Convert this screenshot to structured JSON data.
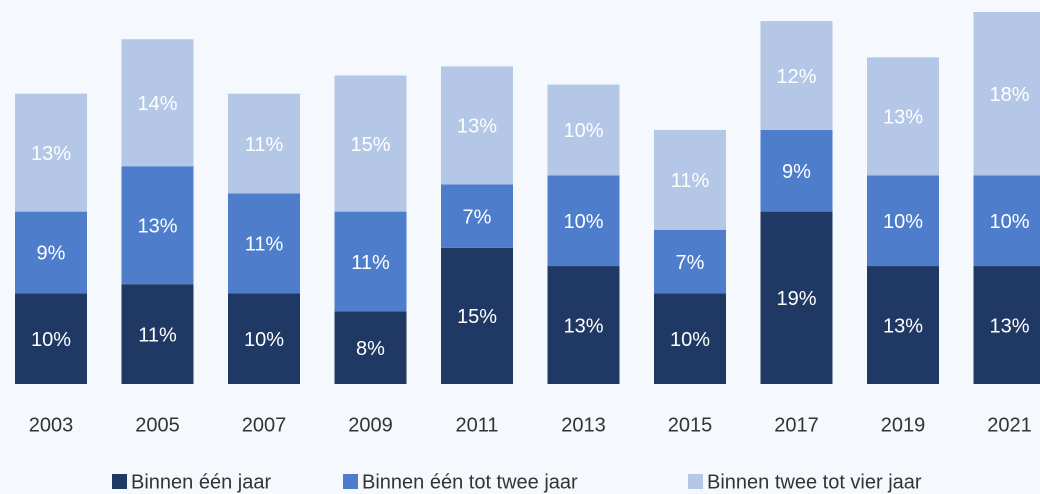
{
  "chart_data": {
    "type": "stacked_bar",
    "categories": [
      "2003",
      "2005",
      "2007",
      "2009",
      "2011",
      "2013",
      "2015",
      "2017",
      "2019",
      "2021"
    ],
    "series": [
      {
        "name": "Binnen één jaar",
        "color": "#203864",
        "values": [
          10,
          11,
          10,
          8,
          15,
          13,
          10,
          19,
          13,
          13
        ],
        "value_labels": [
          "10%",
          "11%",
          "10%",
          "8%",
          "15%",
          "13%",
          "10%",
          "19%",
          "13%",
          "13%"
        ]
      },
      {
        "name": "Binnen één tot twee jaar",
        "color": "#4e7ecb",
        "values": [
          9,
          13,
          11,
          11,
          7,
          10,
          7,
          9,
          10,
          10
        ],
        "value_labels": [
          "9%",
          "13%",
          "11%",
          "11%",
          "7%",
          "10%",
          "7%",
          "9%",
          "10%",
          "10%"
        ]
      },
      {
        "name": "Binnen twee tot vier jaar",
        "color": "#b4c7e7",
        "values": [
          13,
          14,
          11,
          15,
          13,
          10,
          11,
          12,
          13,
          18
        ],
        "value_labels": [
          "13%",
          "14%",
          "11%",
          "15%",
          "13%",
          "10%",
          "11%",
          "12%",
          "13%",
          "18%"
        ]
      }
    ],
    "legend": "bottom"
  }
}
